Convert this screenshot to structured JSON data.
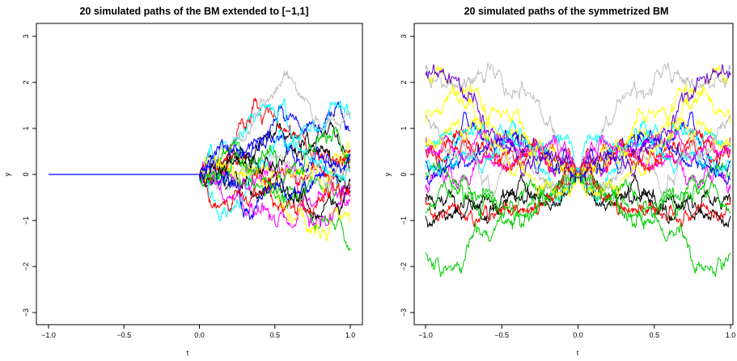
{
  "chart_data": [
    {
      "type": "line",
      "title": "20 simulated paths of the BM extended to [−1,1]",
      "xlabel": "t",
      "ylabel": "y",
      "xlim": [
        -1.0,
        1.0
      ],
      "ylim": [
        -3,
        3
      ],
      "x_ticks": [
        "−1.0",
        "−0.5",
        "0.0",
        "0.5",
        "1.0"
      ],
      "x_tick_values": [
        -1.0,
        -0.5,
        0.0,
        0.5,
        1.0
      ],
      "y_ticks": [
        "−3",
        "−2",
        "−1",
        "0",
        "1",
        "2",
        "3"
      ],
      "y_tick_values": [
        -3,
        -2,
        -1,
        0,
        1,
        2,
        3
      ],
      "grid": false,
      "n_paths": 20,
      "series_colors": [
        "#000000",
        "#ff0000",
        "#00cd00",
        "#0000ff",
        "#00ffff",
        "#ff00ff",
        "#ffff00",
        "#bebebe",
        "#000000",
        "#ff0000",
        "#00cd00",
        "#0000ff",
        "#00ffff",
        "#ff00ff",
        "#ffff00",
        "#bebebe",
        "#000000",
        "#ff0000",
        "#00cd00",
        "#0000ff"
      ],
      "final_values": [
        0.15,
        0.55,
        -1.65,
        0.95,
        1.25,
        -0.6,
        -1.05,
        1.35,
        -0.35,
        0.35,
        0.4,
        -0.25,
        0.05,
        -0.45,
        0.6,
        0.2,
        -0.15,
        -0.2,
        0.25,
        0.45
      ]
    },
    {
      "type": "line",
      "title": "20 simulated paths of the symmetrized BM",
      "xlabel": "t",
      "ylabel": "y",
      "xlim": [
        -1.0,
        1.0
      ],
      "ylim": [
        -3,
        3
      ],
      "x_ticks": [
        "−1.0",
        "−0.5",
        "0.0",
        "0.5",
        "1.0"
      ],
      "x_tick_values": [
        -1.0,
        -0.5,
        0.0,
        0.5,
        1.0
      ],
      "y_ticks": [
        "−3",
        "−2",
        "−1",
        "0",
        "1",
        "2",
        "3"
      ],
      "y_tick_values": [
        -3,
        -2,
        -1,
        0,
        1,
        2,
        3
      ],
      "grid": false,
      "n_paths": 20,
      "series_colors": [
        "#000000",
        "#ff0000",
        "#00cd00",
        "#0000ff",
        "#00ffff",
        "#ff00ff",
        "#ffff00",
        "#bebebe",
        "#000000",
        "#ff0000",
        "#00cd00",
        "#0000ff",
        "#00ffff",
        "#ff00ff",
        "#ffff00",
        "#bebebe",
        "#6600cc",
        "#ff0000",
        "#00cd00",
        "#ffff00"
      ],
      "final_values": [
        -0.9,
        0.8,
        -1.7,
        0.3,
        0.6,
        -0.3,
        2.2,
        2.35,
        -0.6,
        0.5,
        0.05,
        -0.1,
        0.15,
        0.45,
        0.7,
        1.3,
        2.2,
        -0.5,
        -0.85,
        1.1
      ]
    }
  ]
}
